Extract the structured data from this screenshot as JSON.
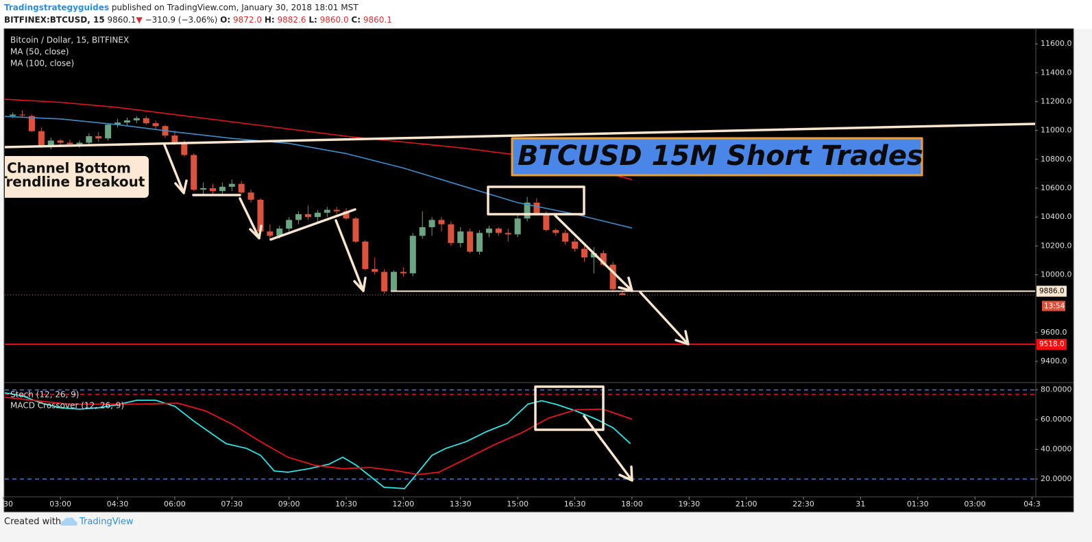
{
  "header": {
    "author": "Tradingstrategyguides",
    "published": "published on TradingView.com, January 30, 2018 18:01 MST",
    "symbol": "BITFINEX:BTCUSD, 15",
    "last": "9860.1",
    "arrow": "▼",
    "change": "−310.9 (−3.06%)",
    "ohlc": [
      {
        "label": "O:",
        "value": "9872.0"
      },
      {
        "label": "H:",
        "value": "9882.6"
      },
      {
        "label": "L:",
        "value": "9860.0"
      },
      {
        "label": "C:",
        "value": "9860.1"
      }
    ]
  },
  "chart_data": [
    {
      "type": "candlestick",
      "title": "Bitcoin / Dollar, 15, BITFINEX",
      "x": [
        1.75,
        2,
        2.25,
        2.5,
        2.75,
        3,
        3.25,
        3.5,
        3.75,
        4,
        4.25,
        4.5,
        4.75,
        5,
        5.25,
        5.5,
        5.75,
        6,
        6.25,
        6.5,
        6.75,
        7,
        7.25,
        7.5,
        7.75,
        8,
        8.25,
        8.5,
        8.75,
        9,
        9.25,
        9.5,
        9.75,
        10,
        10.25,
        10.5,
        10.75,
        11,
        11.25,
        11.5,
        11.75,
        12,
        12.25,
        12.5,
        12.75,
        13,
        13.25,
        13.5,
        13.75,
        14,
        14.25,
        14.5,
        14.75,
        15,
        15.25,
        15.5,
        15.75,
        16,
        16.25,
        16.5,
        16.75,
        17,
        17.25,
        17.5,
        17.75
      ],
      "open": [
        11100,
        11110,
        11100,
        10995,
        10890,
        10930,
        10915,
        10905,
        10915,
        10960,
        10945,
        11040,
        11055,
        11070,
        11085,
        11050,
        11030,
        10965,
        10910,
        10830,
        10590,
        10600,
        10580,
        10610,
        10630,
        10570,
        10520,
        10300,
        10270,
        10320,
        10380,
        10420,
        10400,
        10430,
        10450,
        10440,
        10390,
        10230,
        10040,
        10020,
        9885,
        10020,
        10010,
        10270,
        10330,
        10380,
        10350,
        10220,
        10300,
        10160,
        10290,
        10320,
        10290,
        10280,
        10390,
        10500,
        10420,
        10310,
        10290,
        10230,
        10180,
        10120,
        10150,
        10070,
        9872
      ],
      "high": [
        11125,
        11140,
        11110,
        11020,
        10950,
        10940,
        10935,
        10930,
        10980,
        10990,
        11050,
        11080,
        11090,
        11100,
        11100,
        11070,
        11040,
        11000,
        10930,
        10840,
        10640,
        10630,
        10640,
        10660,
        10650,
        10590,
        10530,
        10350,
        10340,
        10400,
        10440,
        10480,
        10450,
        10470,
        10470,
        10460,
        10400,
        10240,
        10120,
        10040,
        10030,
        10050,
        10290,
        10440,
        10400,
        10400,
        10370,
        10330,
        10320,
        10310,
        10340,
        10330,
        10320,
        10420,
        10540,
        10530,
        10440,
        10320,
        10310,
        10250,
        10200,
        10190,
        10170,
        10090,
        9882.6
      ],
      "low": [
        11085,
        11095,
        10990,
        10880,
        10870,
        10900,
        10890,
        10880,
        10900,
        10920,
        10930,
        11020,
        11030,
        11050,
        11040,
        11010,
        10950,
        10900,
        10820,
        10580,
        10560,
        10560,
        10560,
        10580,
        10560,
        10500,
        10290,
        10240,
        10250,
        10300,
        10350,
        10380,
        10360,
        10400,
        10420,
        10380,
        10220,
        10030,
        10000,
        9870,
        9880,
        9990,
        9990,
        10250,
        10270,
        10300,
        10200,
        10190,
        10150,
        10140,
        10260,
        10270,
        10230,
        10260,
        10370,
        10410,
        10300,
        10270,
        10210,
        10160,
        10090,
        10010,
        10060,
        9880,
        9860
      ],
      "close": [
        11110,
        11105,
        10995,
        10890,
        10930,
        10915,
        10905,
        10915,
        10960,
        10945,
        11040,
        11055,
        11070,
        11085,
        11050,
        11030,
        10965,
        10910,
        10830,
        10590,
        10600,
        10580,
        10610,
        10630,
        10570,
        10520,
        10300,
        10270,
        10320,
        10380,
        10420,
        10400,
        10430,
        10450,
        10440,
        10390,
        10230,
        10040,
        10020,
        9885,
        10020,
        10010,
        10270,
        10330,
        10380,
        10350,
        10220,
        10300,
        10160,
        10290,
        10320,
        10290,
        10280,
        10390,
        10500,
        10420,
        10310,
        10290,
        10230,
        10180,
        10120,
        10150,
        10070,
        9900,
        9860.1
      ],
      "up_color": "#6ba583",
      "down_color": "#d9533f",
      "overlays": [
        {
          "name": "MA (50, close)",
          "color": "#3d8fcc",
          "x": [
            1.54,
            3,
            4.5,
            6,
            7.5,
            9,
            10.5,
            12,
            13.5,
            15,
            16.5,
            18
          ],
          "values": [
            11097,
            11080,
            11040,
            10990,
            10945,
            10910,
            10840,
            10740,
            10620,
            10500,
            10420,
            10324
          ]
        },
        {
          "name": "MA (100, close)",
          "color": "#e3161b",
          "x": [
            1.54,
            3,
            4.5,
            6,
            7.5,
            9,
            10.5,
            12,
            13.5,
            15,
            16.5,
            18
          ],
          "values": [
            11216,
            11195,
            11160,
            11110,
            11060,
            11010,
            10960,
            10920,
            10880,
            10830,
            10760,
            10660
          ]
        }
      ],
      "price_lines": [
        {
          "value": 9886,
          "label": "9886.0",
          "start": 11.67,
          "color": "#fbe6cf",
          "text_color": "#000000"
        },
        {
          "value": 9518,
          "label": "9518.0",
          "start": 1.54,
          "color": "#ff0a0a",
          "text_color": "#ffffff"
        }
      ],
      "countdown": "13:54",
      "annotations": [
        "Channel Bottom",
        "Trendline Breakout",
        "BTCUSD 15M Short Trades"
      ],
      "xlim": [
        1.54,
        28.58
      ],
      "ylim": [
        9258,
        11700
      ],
      "yticks": [
        {
          "value": 9400,
          "label": "9400.0"
        },
        {
          "value": 9600,
          "label": "9600.0"
        },
        {
          "value": 10000,
          "label": "10000.0"
        },
        {
          "value": 10200,
          "label": "10200.0"
        },
        {
          "value": 10400,
          "label": "10400.0"
        },
        {
          "value": 10600,
          "label": "10600.0"
        },
        {
          "value": 10800,
          "label": "10800.0"
        },
        {
          "value": 11000,
          "label": "11000.0"
        },
        {
          "value": 11200,
          "label": "11200.0"
        },
        {
          "value": 11400,
          "label": "11400.0"
        },
        {
          "value": 11600,
          "label": "11600.0"
        }
      ]
    },
    {
      "type": "line",
      "series": [
        {
          "name": "Stoch (12, 26, 9)",
          "color": "#2ee6e6",
          "x": [
            1.54,
            2,
            2.5,
            3,
            3.5,
            4,
            4.5,
            5,
            5.5,
            6,
            6.5,
            7,
            7.35,
            7.89,
            8.25,
            8.61,
            8.97,
            9.51,
            10.05,
            10.41,
            10.77,
            11.22,
            11.49,
            12.03,
            12.39,
            12.75,
            13.11,
            13.65,
            14.19,
            14.73,
            15.27,
            15.63,
            15.99,
            16.53,
            17.06,
            17.51,
            17.96
          ],
          "values": [
            78,
            76,
            71,
            68,
            67,
            68,
            70,
            73,
            73,
            69,
            59,
            50,
            43.8,
            40.6,
            36,
            25.5,
            24.6,
            26.9,
            30,
            34.7,
            29.2,
            20,
            14.5,
            13.6,
            24.6,
            36,
            40.6,
            45.2,
            52,
            57.5,
            70.4,
            72.7,
            70.4,
            65.8,
            60.3,
            54.4,
            43.8
          ]
        },
        {
          "name": "MACD Crossover (12, 26, 9)",
          "color": "#e8151b",
          "x": [
            1.54,
            3.22,
            5.01,
            6.09,
            6.81,
            7.53,
            8.25,
            8.97,
            9.68,
            10.41,
            11.13,
            11.85,
            12.39,
            12.93,
            13.65,
            14.37,
            15.09,
            15.81,
            16.53,
            17.24,
            18
          ],
          "values": [
            75,
            70.4,
            70.4,
            71,
            65.8,
            56.6,
            45.2,
            34.7,
            29.2,
            27,
            27.8,
            25.5,
            23,
            24.6,
            33.7,
            42.9,
            51,
            61,
            66.7,
            67,
            60.3
          ]
        }
      ],
      "levels": [
        {
          "value": 80,
          "color": "#3d7bd9"
        },
        {
          "value": 77,
          "color": "#e0141c"
        },
        {
          "value": 20,
          "color": "#3d7bd9"
        }
      ],
      "xlim": [
        1.54,
        28.58
      ],
      "ylim": [
        8.5,
        84
      ],
      "yticks": [
        {
          "value": 20,
          "label": "20.0000"
        },
        {
          "value": 40,
          "label": "40.0000"
        },
        {
          "value": 60,
          "label": "60.0000"
        },
        {
          "value": 80,
          "label": "80.0000"
        }
      ],
      "xticks": [
        {
          "value": 1.5,
          "label": "30"
        },
        {
          "value": 3,
          "label": "03:00"
        },
        {
          "value": 4.5,
          "label": "04:30"
        },
        {
          "value": 6,
          "label": "06:00"
        },
        {
          "value": 7.5,
          "label": "07:30"
        },
        {
          "value": 9,
          "label": "09:00"
        },
        {
          "value": 10.5,
          "label": "10:30"
        },
        {
          "value": 12,
          "label": "12:00"
        },
        {
          "value": 13.5,
          "label": "13:30"
        },
        {
          "value": 15,
          "label": "15:00"
        },
        {
          "value": 16.5,
          "label": "16:30"
        },
        {
          "value": 18,
          "label": "18:00"
        },
        {
          "value": 19.5,
          "label": "19:30"
        },
        {
          "value": 21,
          "label": "21:00"
        },
        {
          "value": 22.5,
          "label": "22:30"
        },
        {
          "value": 24,
          "label": "31"
        },
        {
          "value": 25.5,
          "label": "01:30"
        },
        {
          "value": 27,
          "label": "03:00"
        },
        {
          "value": 28.5,
          "label": "04:3"
        }
      ]
    }
  ],
  "footer": {
    "created_with": "Created with",
    "brand": "TradingView"
  }
}
